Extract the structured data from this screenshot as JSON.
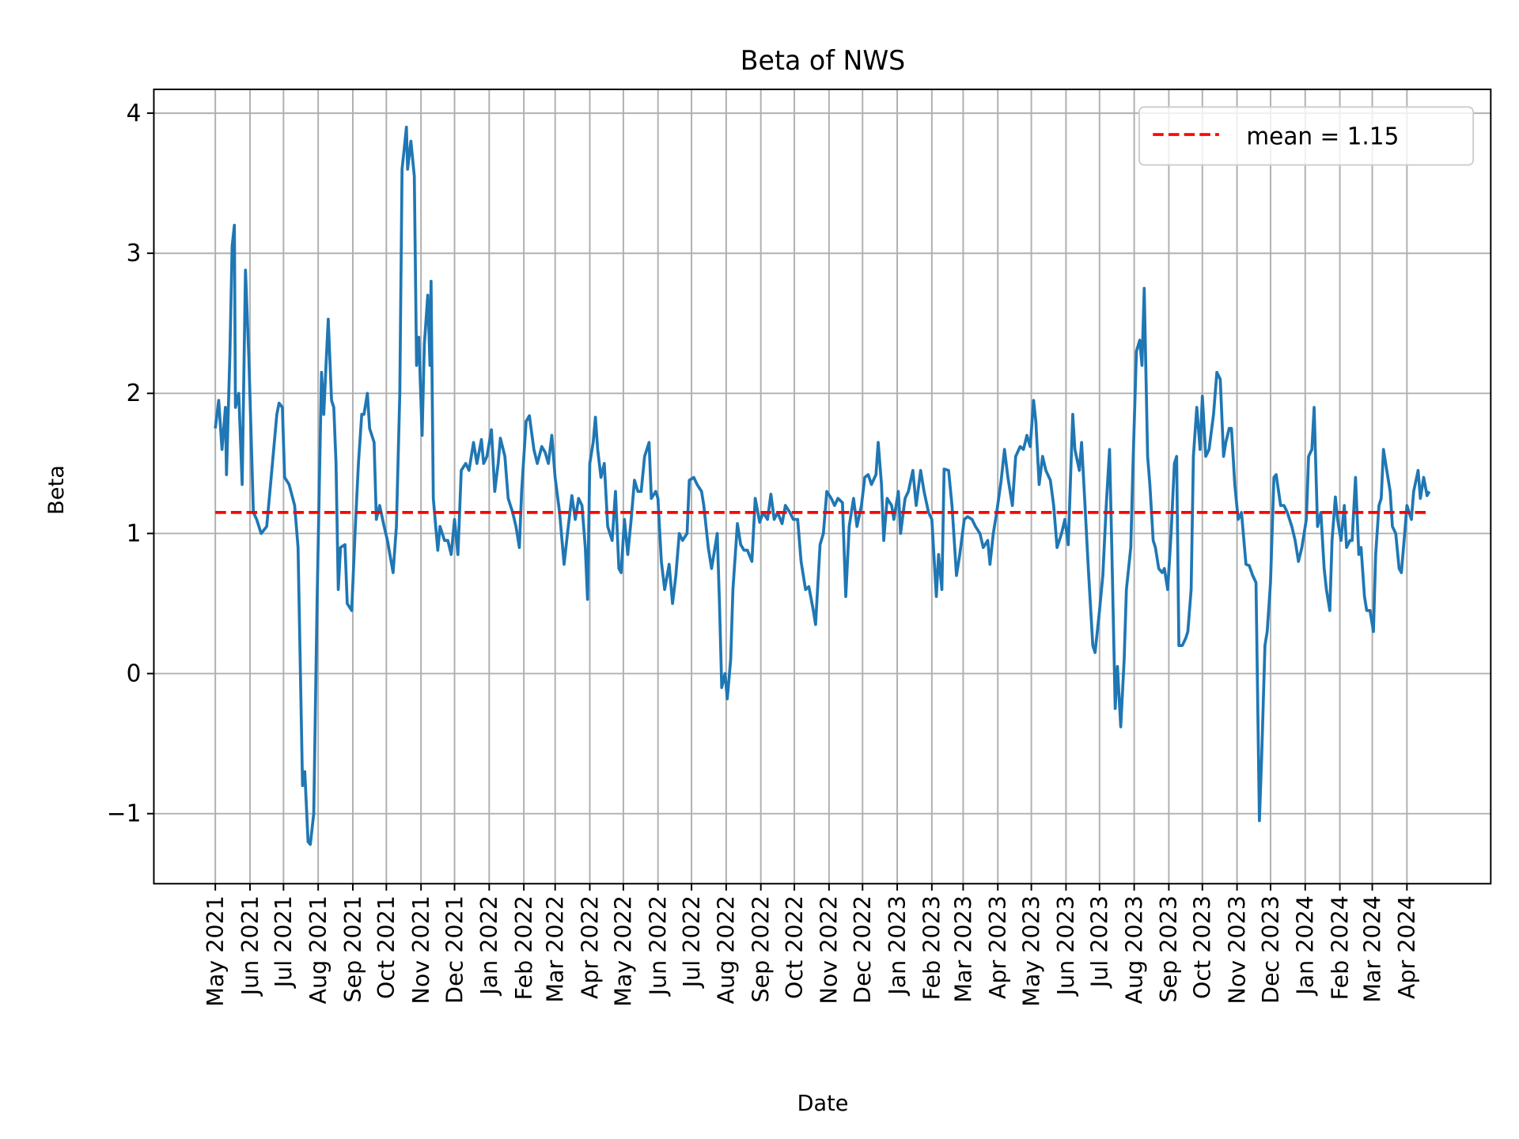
{
  "chart_data": {
    "type": "line",
    "title": "Beta of NWS",
    "xlabel": "Date",
    "ylabel": "Beta",
    "xlim": [
      "2021-03-07",
      "2024-06-15"
    ],
    "ylim": [
      -1.5,
      4.17
    ],
    "grid": true,
    "legend_position": "top-right",
    "yticks": [
      -1,
      0,
      1,
      2,
      3,
      4
    ],
    "ytick_labels": [
      "−1",
      "0",
      "1",
      "2",
      "3",
      "4"
    ],
    "xticks": [
      "2021-05-01",
      "2021-06-01",
      "2021-07-01",
      "2021-08-01",
      "2021-09-01",
      "2021-10-01",
      "2021-11-01",
      "2021-12-01",
      "2022-01-01",
      "2022-02-01",
      "2022-03-01",
      "2022-04-01",
      "2022-05-01",
      "2022-06-01",
      "2022-07-01",
      "2022-08-01",
      "2022-09-01",
      "2022-10-01",
      "2022-11-01",
      "2022-12-01",
      "2023-01-01",
      "2023-02-01",
      "2023-03-01",
      "2023-04-01",
      "2023-05-01",
      "2023-06-01",
      "2023-07-01",
      "2023-08-01",
      "2023-09-01",
      "2023-10-01",
      "2023-11-01",
      "2023-12-01",
      "2024-01-01",
      "2024-02-01",
      "2024-03-01",
      "2024-04-01"
    ],
    "xtick_labels": [
      "May 2021",
      "Jun 2021",
      "Jul 2021",
      "Aug 2021",
      "Sep 2021",
      "Oct 2021",
      "Nov 2021",
      "Dec 2021",
      "Jan 2022",
      "Feb 2022",
      "Mar 2022",
      "Apr 2022",
      "May 2022",
      "Jun 2022",
      "Jul 2022",
      "Aug 2022",
      "Sep 2022",
      "Oct 2022",
      "Nov 2022",
      "Dec 2022",
      "Jan 2023",
      "Feb 2023",
      "Mar 2023",
      "Apr 2023",
      "May 2023",
      "Jun 2023",
      "Jul 2023",
      "Aug 2023",
      "Sep 2023",
      "Oct 2023",
      "Nov 2023",
      "Dec 2023",
      "Jan 2024",
      "Feb 2024",
      "Mar 2024",
      "Apr 2024"
    ],
    "series": [
      {
        "color": "#1f77b4",
        "x": [
          "2021-05-01",
          "2021-05-04",
          "2021-05-07",
          "2021-05-10",
          "2021-05-11",
          "2021-05-14",
          "2021-05-16",
          "2021-05-18",
          "2021-05-19",
          "2021-05-22",
          "2021-05-25",
          "2021-05-28",
          "2021-05-31",
          "2021-06-04",
          "2021-06-07",
          "2021-06-11",
          "2021-06-16",
          "2021-06-20",
          "2021-06-25",
          "2021-06-27",
          "2021-06-30",
          "2021-07-02",
          "2021-07-06",
          "2021-07-11",
          "2021-07-14",
          "2021-07-18",
          "2021-07-20",
          "2021-07-23",
          "2021-07-25",
          "2021-07-28",
          "2021-07-31",
          "2021-08-04",
          "2021-08-06",
          "2021-08-08",
          "2021-08-10",
          "2021-08-13",
          "2021-08-15",
          "2021-08-17",
          "2021-08-19",
          "2021-08-21",
          "2021-08-25",
          "2021-08-27",
          "2021-08-31",
          "2021-09-03",
          "2021-09-06",
          "2021-09-09",
          "2021-09-11",
          "2021-09-14",
          "2021-09-16",
          "2021-09-20",
          "2021-09-22",
          "2021-09-25",
          "2021-09-29",
          "2021-10-02",
          "2021-10-07",
          "2021-10-10",
          "2021-10-13",
          "2021-10-15",
          "2021-10-17",
          "2021-10-19",
          "2021-10-20",
          "2021-10-23",
          "2021-10-26",
          "2021-10-28",
          "2021-10-30",
          "2021-11-02",
          "2021-11-04",
          "2021-11-07",
          "2021-11-09",
          "2021-11-10",
          "2021-11-12",
          "2021-11-16",
          "2021-11-18",
          "2021-11-22",
          "2021-11-25",
          "2021-11-28",
          "2021-12-01",
          "2021-12-04",
          "2021-12-07",
          "2021-12-11",
          "2021-12-14",
          "2021-12-18",
          "2021-12-21",
          "2021-12-25",
          "2021-12-27",
          "2021-12-30",
          "2022-01-03",
          "2022-01-06",
          "2022-01-09",
          "2022-01-11",
          "2022-01-15",
          "2022-01-18",
          "2022-01-22",
          "2022-01-25",
          "2022-01-28",
          "2022-01-30",
          "2022-02-03",
          "2022-02-06",
          "2022-02-10",
          "2022-02-13",
          "2022-02-17",
          "2022-02-20",
          "2022-02-23",
          "2022-02-26",
          "2022-03-01",
          "2022-03-05",
          "2022-03-09",
          "2022-03-12",
          "2022-03-16",
          "2022-03-19",
          "2022-03-22",
          "2022-03-25",
          "2022-03-28",
          "2022-03-30",
          "2022-04-01",
          "2022-04-04",
          "2022-04-06",
          "2022-04-08",
          "2022-04-11",
          "2022-04-14",
          "2022-04-17",
          "2022-04-21",
          "2022-04-24",
          "2022-04-27",
          "2022-04-29",
          "2022-05-02",
          "2022-05-05",
          "2022-05-08",
          "2022-05-11",
          "2022-05-14",
          "2022-05-17",
          "2022-05-20",
          "2022-05-24",
          "2022-05-26",
          "2022-05-30",
          "2022-06-01",
          "2022-06-04",
          "2022-06-07",
          "2022-06-11",
          "2022-06-14",
          "2022-06-17",
          "2022-06-20",
          "2022-06-23",
          "2022-06-27",
          "2022-06-29",
          "2022-07-03",
          "2022-07-06",
          "2022-07-10",
          "2022-07-12",
          "2022-07-16",
          "2022-07-19",
          "2022-07-24",
          "2022-07-26",
          "2022-07-28",
          "2022-07-31",
          "2022-08-02",
          "2022-08-05",
          "2022-08-07",
          "2022-08-11",
          "2022-08-14",
          "2022-08-17",
          "2022-08-20",
          "2022-08-24",
          "2022-08-27",
          "2022-08-31",
          "2022-09-03",
          "2022-09-07",
          "2022-09-10",
          "2022-09-13",
          "2022-09-16",
          "2022-09-20",
          "2022-09-23",
          "2022-09-27",
          "2022-09-30",
          "2022-10-04",
          "2022-10-07",
          "2022-10-11",
          "2022-10-14",
          "2022-10-18",
          "2022-10-20",
          "2022-10-24",
          "2022-10-27",
          "2022-10-30",
          "2022-11-03",
          "2022-11-06",
          "2022-11-09",
          "2022-11-13",
          "2022-11-16",
          "2022-11-19",
          "2022-11-23",
          "2022-11-26",
          "2022-11-30",
          "2022-12-03",
          "2022-12-06",
          "2022-12-09",
          "2022-12-13",
          "2022-12-15",
          "2022-12-18",
          "2022-12-20",
          "2022-12-23",
          "2022-12-27",
          "2022-12-29",
          "2023-01-02",
          "2023-01-04",
          "2023-01-08",
          "2023-01-11",
          "2023-01-15",
          "2023-01-18",
          "2023-01-22",
          "2023-01-25",
          "2023-01-29",
          "2023-02-01",
          "2023-02-05",
          "2023-02-07",
          "2023-02-10",
          "2023-02-12",
          "2023-02-16",
          "2023-02-19",
          "2023-02-23",
          "2023-02-26",
          "2023-03-02",
          "2023-03-05",
          "2023-03-09",
          "2023-03-12",
          "2023-03-16",
          "2023-03-19",
          "2023-03-23",
          "2023-03-25",
          "2023-03-28",
          "2023-03-31",
          "2023-04-04",
          "2023-04-07",
          "2023-04-10",
          "2023-04-14",
          "2023-04-17",
          "2023-04-21",
          "2023-04-24",
          "2023-04-27",
          "2023-04-30",
          "2023-05-03",
          "2023-05-05",
          "2023-05-08",
          "2023-05-11",
          "2023-05-14",
          "2023-05-18",
          "2023-05-21",
          "2023-05-24",
          "2023-05-28",
          "2023-05-31",
          "2023-06-03",
          "2023-06-07",
          "2023-06-09",
          "2023-06-13",
          "2023-06-15",
          "2023-06-18",
          "2023-06-21",
          "2023-06-25",
          "2023-06-27",
          "2023-07-01",
          "2023-07-04",
          "2023-07-07",
          "2023-07-10",
          "2023-07-12",
          "2023-07-15",
          "2023-07-17",
          "2023-07-20",
          "2023-07-23",
          "2023-07-25",
          "2023-07-29",
          "2023-07-31",
          "2023-08-03",
          "2023-08-06",
          "2023-08-08",
          "2023-08-10",
          "2023-08-13",
          "2023-08-15",
          "2023-08-18",
          "2023-08-20",
          "2023-08-23",
          "2023-08-26",
          "2023-08-28",
          "2023-08-31",
          "2023-09-03",
          "2023-09-06",
          "2023-09-08",
          "2023-09-10",
          "2023-09-13",
          "2023-09-16",
          "2023-09-18",
          "2023-09-21",
          "2023-09-23",
          "2023-09-26",
          "2023-09-29",
          "2023-10-01",
          "2023-10-04",
          "2023-10-07",
          "2023-10-11",
          "2023-10-14",
          "2023-10-17",
          "2023-10-20",
          "2023-10-22",
          "2023-10-25",
          "2023-10-27",
          "2023-10-30",
          "2023-11-02",
          "2023-11-05",
          "2023-11-09",
          "2023-11-12",
          "2023-11-15",
          "2023-11-18",
          "2023-11-21",
          "2023-11-23",
          "2023-11-26",
          "2023-11-28",
          "2023-12-01",
          "2023-12-04",
          "2023-12-06",
          "2023-12-10",
          "2023-12-13",
          "2023-12-16",
          "2023-12-20",
          "2023-12-23",
          "2023-12-26",
          "2023-12-29",
          "2024-01-02",
          "2024-01-04",
          "2024-01-07",
          "2024-01-09",
          "2024-01-12",
          "2024-01-15",
          "2024-01-18",
          "2024-01-20",
          "2024-01-23",
          "2024-01-25",
          "2024-01-28",
          "2024-01-30",
          "2024-02-02",
          "2024-02-05",
          "2024-02-07",
          "2024-02-10",
          "2024-02-12",
          "2024-02-15",
          "2024-02-18",
          "2024-02-20",
          "2024-02-23",
          "2024-02-25",
          "2024-02-28",
          "2024-03-02",
          "2024-03-04",
          "2024-03-07",
          "2024-03-09",
          "2024-03-11",
          "2024-03-14",
          "2024-03-17",
          "2024-03-19",
          "2024-03-22",
          "2024-03-25",
          "2024-03-27",
          "2024-03-30",
          "2024-04-01",
          "2024-04-05",
          "2024-04-07",
          "2024-04-11",
          "2024-04-13",
          "2024-04-16",
          "2024-04-19",
          "2024-04-21"
        ],
        "y": [
          1.75,
          1.95,
          1.6,
          1.9,
          1.42,
          2.28,
          3.05,
          3.2,
          1.9,
          2.0,
          1.35,
          2.88,
          2.25,
          1.15,
          1.1,
          1.0,
          1.05,
          1.4,
          1.85,
          1.93,
          1.9,
          1.4,
          1.35,
          1.2,
          0.9,
          -0.8,
          -0.7,
          -1.2,
          -1.22,
          -1.0,
          0.5,
          2.15,
          1.85,
          2.2,
          2.53,
          1.95,
          1.9,
          1.5,
          0.6,
          0.9,
          0.92,
          0.5,
          0.45,
          1.0,
          1.5,
          1.85,
          1.85,
          2.0,
          1.75,
          1.65,
          1.1,
          1.2,
          1.05,
          0.95,
          0.72,
          1.05,
          2.0,
          3.6,
          3.75,
          3.9,
          3.6,
          3.8,
          3.55,
          2.2,
          2.4,
          1.7,
          2.35,
          2.7,
          2.2,
          2.8,
          1.25,
          0.88,
          1.05,
          0.95,
          0.95,
          0.85,
          1.1,
          0.85,
          1.45,
          1.5,
          1.45,
          1.65,
          1.5,
          1.67,
          1.5,
          1.55,
          1.74,
          1.3,
          1.5,
          1.68,
          1.55,
          1.25,
          1.15,
          1.05,
          0.9,
          1.3,
          1.8,
          1.84,
          1.6,
          1.5,
          1.62,
          1.58,
          1.5,
          1.7,
          1.4,
          1.15,
          0.78,
          1.0,
          1.27,
          1.1,
          1.25,
          1.2,
          0.9,
          0.53,
          1.5,
          1.65,
          1.83,
          1.6,
          1.4,
          1.5,
          1.05,
          0.95,
          1.3,
          0.75,
          0.72,
          1.1,
          0.85,
          1.1,
          1.38,
          1.3,
          1.3,
          1.55,
          1.65,
          1.25,
          1.3,
          1.25,
          0.8,
          0.6,
          0.78,
          0.5,
          0.7,
          1.0,
          0.95,
          1.0,
          1.38,
          1.4,
          1.35,
          1.3,
          1.2,
          0.9,
          0.75,
          1.0,
          0.5,
          -0.1,
          0.0,
          -0.18,
          0.1,
          0.6,
          1.07,
          0.92,
          0.88,
          0.88,
          0.8,
          1.25,
          1.08,
          1.15,
          1.1,
          1.28,
          1.1,
          1.15,
          1.07,
          1.2,
          1.15,
          1.1,
          1.1,
          0.8,
          0.6,
          0.62,
          0.45,
          0.35,
          0.92,
          1.0,
          1.3,
          1.25,
          1.2,
          1.25,
          1.22,
          0.55,
          1.05,
          1.25,
          1.05,
          1.2,
          1.4,
          1.42,
          1.35,
          1.42,
          1.65,
          1.35,
          0.95,
          1.25,
          1.2,
          1.1,
          1.3,
          1.0,
          1.25,
          1.3,
          1.45,
          1.2,
          1.45,
          1.3,
          1.15,
          1.1,
          0.55,
          0.85,
          0.6,
          1.46,
          1.45,
          1.2,
          0.7,
          0.85,
          1.1,
          1.12,
          1.1,
          1.05,
          1.0,
          0.9,
          0.95,
          0.78,
          1.0,
          1.15,
          1.38,
          1.6,
          1.4,
          1.2,
          1.55,
          1.62,
          1.6,
          1.7,
          1.62,
          1.95,
          1.8,
          1.35,
          1.55,
          1.45,
          1.38,
          1.2,
          0.9,
          1.0,
          1.1,
          0.92,
          1.85,
          1.6,
          1.45,
          1.65,
          1.2,
          0.75,
          0.2,
          0.15,
          0.45,
          0.7,
          1.2,
          1.6,
          0.9,
          -0.25,
          0.05,
          -0.38,
          0.1,
          0.6,
          0.9,
          1.5,
          2.3,
          2.38,
          2.2,
          2.75,
          1.55,
          1.35,
          0.95,
          0.9,
          0.75,
          0.72,
          0.75,
          0.6,
          1.0,
          1.5,
          1.55,
          0.2,
          0.2,
          0.25,
          0.3,
          0.6,
          1.55,
          1.9,
          1.6,
          1.98,
          1.55,
          1.6,
          1.85,
          2.15,
          2.1,
          1.55,
          1.65,
          1.75,
          1.75,
          1.35,
          1.1,
          1.15,
          0.78,
          0.77,
          0.7,
          0.65,
          -1.05,
          -0.6,
          0.2,
          0.3,
          0.65,
          1.4,
          1.42,
          1.2,
          1.2,
          1.15,
          1.05,
          0.95,
          0.8,
          0.9,
          1.1,
          1.55,
          1.6,
          1.9,
          1.05,
          1.15,
          0.75,
          0.6,
          0.45,
          0.95,
          1.26,
          1.1,
          0.95,
          1.2,
          0.9,
          0.95,
          0.95,
          1.4,
          0.85,
          0.9,
          0.55,
          0.45,
          0.45,
          0.3,
          0.85,
          1.2,
          1.25,
          1.6,
          1.45,
          1.3,
          1.05,
          1.0,
          0.75,
          0.72,
          1.0,
          1.2,
          1.1,
          1.3,
          1.45,
          1.25,
          1.4,
          1.27,
          1.3
        ]
      }
    ],
    "mean_line": {
      "value": 1.15,
      "color": "#ff0000",
      "label": "mean = 1.15",
      "style": "dashed"
    }
  }
}
